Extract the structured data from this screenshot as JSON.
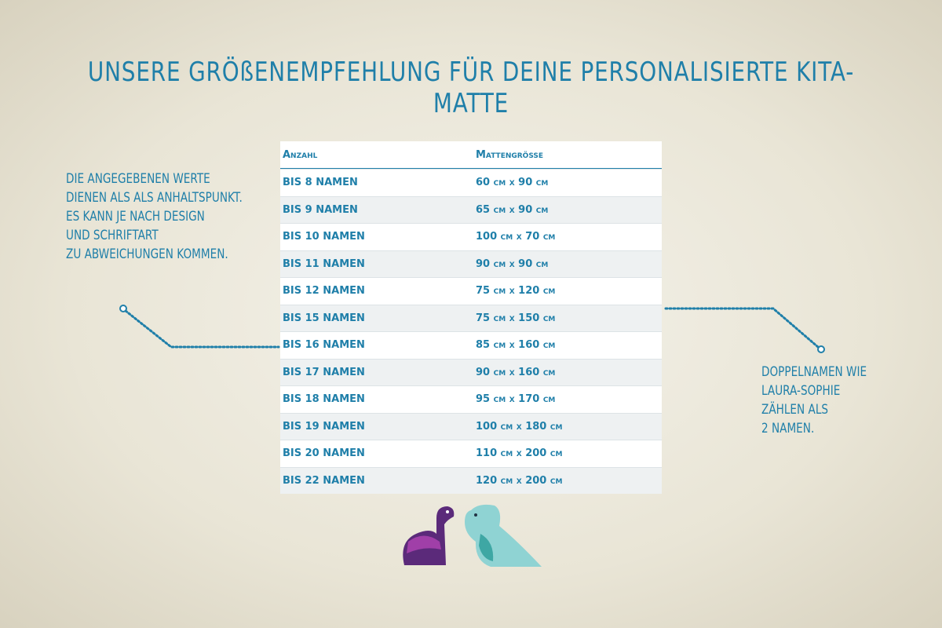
{
  "title": "UNSERE GRÖßENEMPFEHLUNG FÜR DEINE PERSONALISIERTE KITA-MATTE",
  "left_note": [
    "DIE ANGEGEBENEN WERTE",
    "DIENEN ALS ALS ANHALTSPUNKT.",
    "ES KANN JE NACH DESIGN",
    "UND SCHRIFTART",
    "ZU ABWEICHUNGEN KOMMEN."
  ],
  "right_note": [
    "DOPPELNAMEN WIE",
    "LAURA-SOPHIE",
    "ZÄHLEN ALS",
    "2 NAMEN."
  ],
  "table": {
    "header": [
      "Anzahl",
      "Mattengröße"
    ],
    "rows": [
      [
        "BIS 8 NAMEN",
        "60 cm x 90 cm"
      ],
      [
        "BIS 9 NAMEN",
        "65 cm x 90 cm"
      ],
      [
        "BIS 10 NAMEN",
        "100 cm x 70 cm"
      ],
      [
        "BIS 11 NAMEN",
        "90 cm x 90 cm"
      ],
      [
        "BIS 12 NAMEN",
        "75 cm x 120 cm"
      ],
      [
        "BIS 15 NAMEN",
        "75 cm x 150 cm"
      ],
      [
        "BIS 16 NAMEN",
        "85 cm x 160 cm"
      ],
      [
        "BIS 17 NAMEN",
        "90 cm x 160 cm"
      ],
      [
        "BIS 18 NAMEN",
        "95 cm x 170 cm"
      ],
      [
        "BIS 19 NAMEN",
        "100 cm x 180 cm"
      ],
      [
        "BIS 20 NAMEN",
        "110 cm x 200 cm"
      ],
      [
        "BIS 22 NAMEN",
        "120 cm x 200 cm"
      ]
    ]
  }
}
